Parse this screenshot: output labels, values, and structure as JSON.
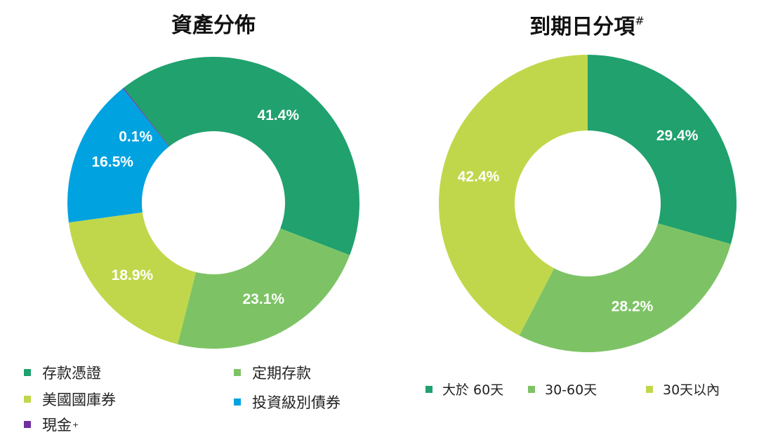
{
  "chart_data": [
    {
      "type": "pie",
      "title": "資產分佈",
      "series": [
        {
          "name": "存款憑證",
          "value": 41.4,
          "label": "41.4%",
          "color": "#20a16e"
        },
        {
          "name": "定期存款",
          "value": 23.1,
          "label": "23.1%",
          "color": "#7dc365"
        },
        {
          "name": "美國國庫券",
          "value": 18.9,
          "label": "18.9%",
          "color": "#c1d74b"
        },
        {
          "name": "投資級別債券",
          "value": 16.5,
          "label": "16.5%",
          "color": "#00a2e0"
        },
        {
          "name": "現金",
          "name_sup": "+",
          "value": 0.1,
          "label": "0.1%",
          "color": "#7030a0"
        }
      ],
      "legend_placement": "bottom"
    },
    {
      "type": "pie",
      "title": "到期日分項",
      "title_sup": "#",
      "series": [
        {
          "name": "大於 60天",
          "value": 29.4,
          "label": "29.4%",
          "color": "#20a16e"
        },
        {
          "name": "30-60天",
          "value": 28.2,
          "label": "28.2%",
          "color": "#7dc365"
        },
        {
          "name": "30天以內",
          "value": 42.4,
          "label": "42.4%",
          "color": "#c1d74b"
        }
      ],
      "legend_placement": "bottom"
    }
  ]
}
